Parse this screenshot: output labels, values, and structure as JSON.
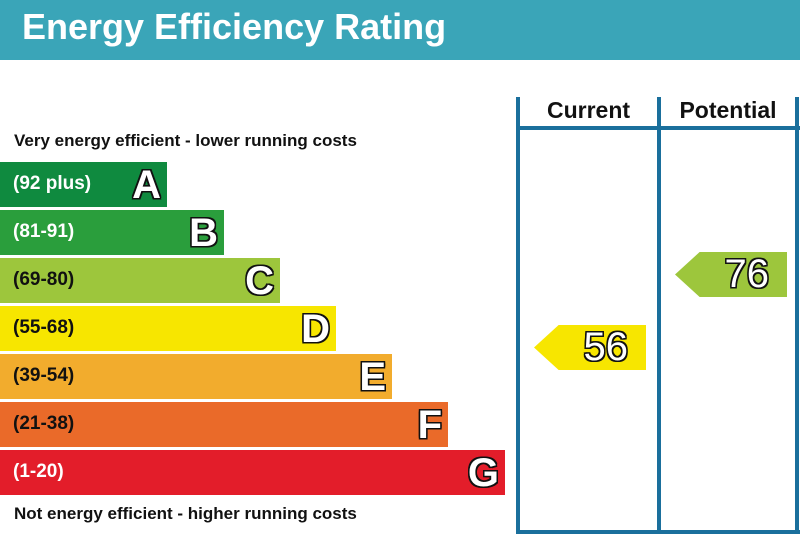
{
  "chart_data": {
    "type": "bar",
    "title": "Energy Efficiency Rating",
    "top_note": "Very energy efficient - lower running costs",
    "bottom_note": "Not energy efficient - higher running costs",
    "columns": [
      "Current",
      "Potential"
    ],
    "bands": [
      {
        "letter": "A",
        "range": "(92 plus)",
        "color": "#0f8a3f"
      },
      {
        "letter": "B",
        "range": "(81-91)",
        "color": "#2a9e3c"
      },
      {
        "letter": "C",
        "range": "(69-80)",
        "color": "#9dc63c"
      },
      {
        "letter": "D",
        "range": "(55-68)",
        "color": "#f7e600"
      },
      {
        "letter": "E",
        "range": "(39-54)",
        "color": "#f2ac2d"
      },
      {
        "letter": "F",
        "range": "(21-38)",
        "color": "#ea6a29"
      },
      {
        "letter": "G",
        "range": "(1-20)",
        "color": "#e31d2a"
      }
    ],
    "current": {
      "value": "56",
      "band": "D",
      "color": "#f7e600"
    },
    "potential": {
      "value": "76",
      "band": "C",
      "color": "#9dc63c"
    }
  }
}
